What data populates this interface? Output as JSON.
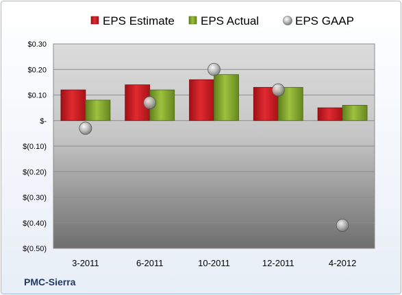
{
  "company": "PMC-Sierra",
  "chart_data": {
    "type": "bar",
    "categories": [
      "3-2011",
      "6-2011",
      "10-2011",
      "12-2011",
      "4-2012"
    ],
    "series": [
      {
        "name": "EPS Estimate",
        "kind": "bar",
        "color": "#c0141b",
        "values": [
          0.12,
          0.14,
          0.16,
          0.13,
          0.05
        ]
      },
      {
        "name": "EPS Actual",
        "kind": "bar",
        "color": "#7ea32c",
        "values": [
          0.08,
          0.12,
          0.18,
          0.13,
          0.06
        ]
      },
      {
        "name": "EPS GAAP",
        "kind": "marker",
        "color": "#a6a6a6",
        "values": [
          -0.03,
          0.07,
          0.2,
          0.12,
          -0.41
        ]
      }
    ],
    "ylim": [
      -0.5,
      0.3
    ],
    "yticks": [
      0.3,
      0.2,
      0.1,
      0.0,
      -0.1,
      -0.2,
      -0.3,
      -0.4,
      -0.5
    ],
    "ytick_labels": [
      "$0.30",
      "$0.20",
      "$0.10",
      "$-",
      "$(0.10)",
      "$(0.20)",
      "$(0.30)",
      "$(0.40)",
      "$(0.50)"
    ],
    "grid": true,
    "legend": "top-center"
  }
}
